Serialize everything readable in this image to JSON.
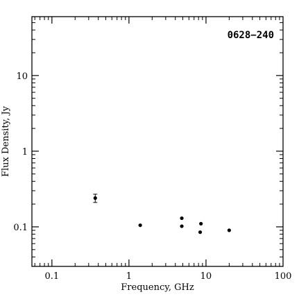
{
  "chart_data": {
    "type": "scatter",
    "title": "0628−240",
    "xlabel": "Frequency, GHz",
    "ylabel": "Flux Density, Jy",
    "xscale": "log",
    "yscale": "log",
    "xlim": [
      0.055,
      100
    ],
    "ylim": [
      0.03,
      60
    ],
    "x_ticks": [
      {
        "value": 0.1,
        "label": "0.1"
      },
      {
        "value": 1,
        "label": "1"
      },
      {
        "value": 10,
        "label": "10"
      },
      {
        "value": 100,
        "label": "100"
      }
    ],
    "y_ticks": [
      {
        "value": 0.1,
        "label": "0.1"
      },
      {
        "value": 1,
        "label": "1"
      },
      {
        "value": 10,
        "label": "10"
      }
    ],
    "points": [
      {
        "x": 0.365,
        "y": 0.24,
        "yerr": 0.03
      },
      {
        "x": 1.4,
        "y": 0.105
      },
      {
        "x": 4.85,
        "y": 0.13
      },
      {
        "x": 4.85,
        "y": 0.102
      },
      {
        "x": 8.4,
        "y": 0.085
      },
      {
        "x": 8.6,
        "y": 0.11
      },
      {
        "x": 20,
        "y": 0.09
      }
    ]
  }
}
